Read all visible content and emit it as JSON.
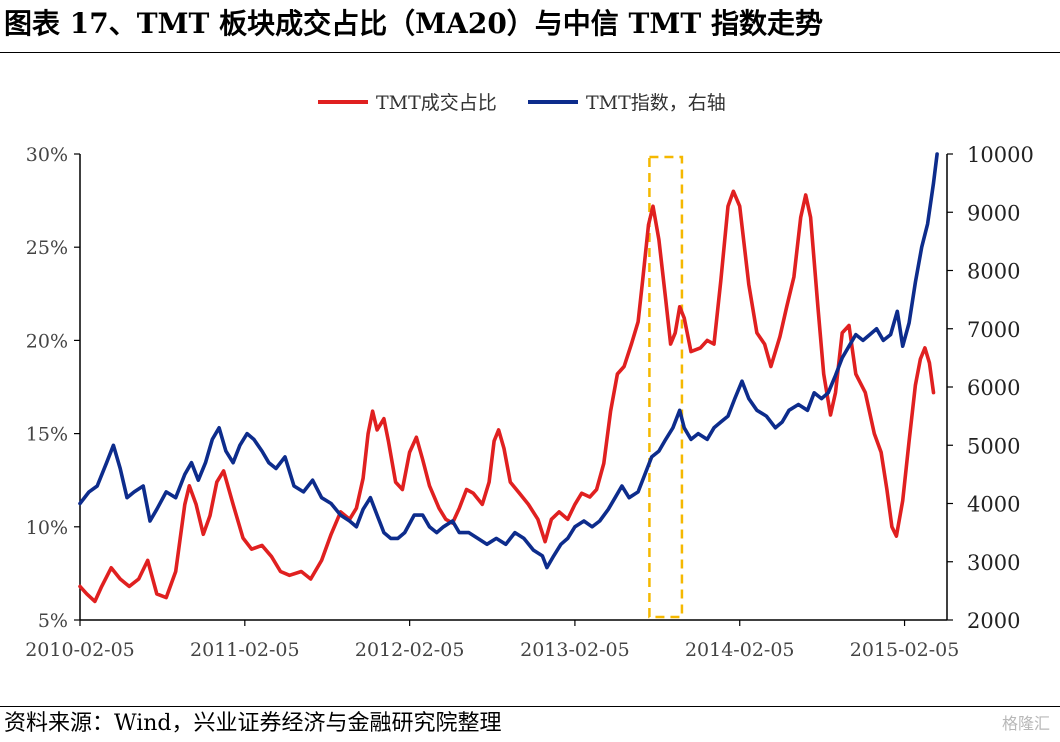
{
  "title": "图表 17、TMT 板块成交占比（MA20）与中信 TMT 指数走势",
  "source": "资料来源：Wind，兴业证券经济与金融研究院整理",
  "watermark": "格隆汇",
  "chart_data": {
    "type": "line",
    "legend_position": "top-center",
    "grid": false,
    "x_tick_labels": [
      "2010-02-05",
      "2011-02-05",
      "2012-02-05",
      "2013-02-05",
      "2014-02-05",
      "2015-02-05"
    ],
    "x_ticks": [
      "2010-02-05",
      "2011-02-05",
      "2012-02-05",
      "2013-02-05",
      "2014-02-05",
      "2015-02-05"
    ],
    "xlim": [
      "2010-02-05",
      "2015-05-10"
    ],
    "ylim_left": [
      5,
      30
    ],
    "left_tick_labels": [
      "5%",
      "10%",
      "15%",
      "20%",
      "25%",
      "30%"
    ],
    "left_ticks": [
      5,
      10,
      15,
      20,
      25,
      30
    ],
    "ylim_right": [
      2000,
      10000
    ],
    "right_tick_labels": [
      "2000",
      "3000",
      "4000",
      "5000",
      "6000",
      "7000",
      "8000",
      "9000",
      "10000"
    ],
    "right_ticks": [
      2000,
      3000,
      4000,
      5000,
      6000,
      7000,
      8000,
      9000,
      10000
    ],
    "highlight": {
      "x_start": "2013-07-20",
      "x_end": "2013-09-30",
      "color": "#F5B800"
    },
    "series": [
      {
        "name": "TMT成交占比",
        "axis": "left",
        "color": "#E02020",
        "points": [
          [
            "2010-02-05",
            6.8
          ],
          [
            "2010-02-20",
            6.4
          ],
          [
            "2010-03-10",
            6.0
          ],
          [
            "2010-03-25",
            6.8
          ],
          [
            "2010-04-15",
            7.8
          ],
          [
            "2010-05-05",
            7.2
          ],
          [
            "2010-05-25",
            6.8
          ],
          [
            "2010-06-15",
            7.2
          ],
          [
            "2010-07-05",
            8.2
          ],
          [
            "2010-07-25",
            6.4
          ],
          [
            "2010-08-15",
            6.2
          ],
          [
            "2010-09-05",
            7.6
          ],
          [
            "2010-09-25",
            11.2
          ],
          [
            "2010-10-05",
            12.2
          ],
          [
            "2010-10-20",
            11.2
          ],
          [
            "2010-11-05",
            9.6
          ],
          [
            "2010-11-20",
            10.6
          ],
          [
            "2010-12-05",
            12.4
          ],
          [
            "2010-12-20",
            13.0
          ],
          [
            "2011-01-10",
            11.2
          ],
          [
            "2011-02-01",
            9.4
          ],
          [
            "2011-02-20",
            8.8
          ],
          [
            "2011-03-15",
            9.0
          ],
          [
            "2011-04-05",
            8.4
          ],
          [
            "2011-04-25",
            7.6
          ],
          [
            "2011-05-15",
            7.4
          ],
          [
            "2011-06-10",
            7.6
          ],
          [
            "2011-07-01",
            7.2
          ],
          [
            "2011-07-25",
            8.2
          ],
          [
            "2011-08-15",
            9.6
          ],
          [
            "2011-09-05",
            10.8
          ],
          [
            "2011-09-25",
            10.4
          ],
          [
            "2011-10-10",
            11.0
          ],
          [
            "2011-10-25",
            12.6
          ],
          [
            "2011-11-05",
            15.0
          ],
          [
            "2011-11-15",
            16.2
          ],
          [
            "2011-11-25",
            15.2
          ],
          [
            "2011-12-10",
            15.8
          ],
          [
            "2011-12-20",
            14.6
          ],
          [
            "2012-01-05",
            12.4
          ],
          [
            "2012-01-20",
            12.0
          ],
          [
            "2012-02-05",
            14.0
          ],
          [
            "2012-02-20",
            14.8
          ],
          [
            "2012-03-05",
            13.6
          ],
          [
            "2012-03-20",
            12.2
          ],
          [
            "2012-04-10",
            11.0
          ],
          [
            "2012-04-25",
            10.4
          ],
          [
            "2012-05-10",
            10.2
          ],
          [
            "2012-05-25",
            11.0
          ],
          [
            "2012-06-10",
            12.0
          ],
          [
            "2012-06-25",
            11.8
          ],
          [
            "2012-07-15",
            11.2
          ],
          [
            "2012-07-30",
            12.4
          ],
          [
            "2012-08-10",
            14.6
          ],
          [
            "2012-08-20",
            15.2
          ],
          [
            "2012-09-01",
            14.2
          ],
          [
            "2012-09-15",
            12.4
          ],
          [
            "2012-10-05",
            11.8
          ],
          [
            "2012-10-25",
            11.2
          ],
          [
            "2012-11-15",
            10.4
          ],
          [
            "2012-12-01",
            9.2
          ],
          [
            "2012-12-15",
            10.4
          ],
          [
            "2013-01-01",
            10.8
          ],
          [
            "2013-01-20",
            10.4
          ],
          [
            "2013-02-05",
            11.2
          ],
          [
            "2013-02-20",
            11.8
          ],
          [
            "2013-03-10",
            11.6
          ],
          [
            "2013-03-25",
            12.0
          ],
          [
            "2013-04-10",
            13.4
          ],
          [
            "2013-04-25",
            16.2
          ],
          [
            "2013-05-10",
            18.2
          ],
          [
            "2013-05-25",
            18.6
          ],
          [
            "2013-06-10",
            19.8
          ],
          [
            "2013-06-25",
            21.0
          ],
          [
            "2013-07-05",
            23.2
          ],
          [
            "2013-07-18",
            26.2
          ],
          [
            "2013-07-28",
            27.2
          ],
          [
            "2013-08-10",
            25.4
          ],
          [
            "2013-08-25",
            22.2
          ],
          [
            "2013-09-05",
            19.8
          ],
          [
            "2013-09-15",
            20.4
          ],
          [
            "2013-09-25",
            21.8
          ],
          [
            "2013-10-05",
            21.2
          ],
          [
            "2013-10-20",
            19.4
          ],
          [
            "2013-11-10",
            19.6
          ],
          [
            "2013-11-25",
            20.0
          ],
          [
            "2013-12-10",
            19.8
          ],
          [
            "2013-12-25",
            23.2
          ],
          [
            "2014-01-10",
            27.2
          ],
          [
            "2014-01-22",
            28.0
          ],
          [
            "2014-02-05",
            27.2
          ],
          [
            "2014-02-25",
            23.0
          ],
          [
            "2014-03-15",
            20.4
          ],
          [
            "2014-04-01",
            19.8
          ],
          [
            "2014-04-15",
            18.6
          ],
          [
            "2014-05-05",
            20.2
          ],
          [
            "2014-05-20",
            21.8
          ],
          [
            "2014-06-05",
            23.4
          ],
          [
            "2014-06-20",
            26.6
          ],
          [
            "2014-07-01",
            27.8
          ],
          [
            "2014-07-12",
            26.6
          ],
          [
            "2014-07-28",
            21.8
          ],
          [
            "2014-08-10",
            18.2
          ],
          [
            "2014-08-25",
            16.0
          ],
          [
            "2014-09-05",
            17.2
          ],
          [
            "2014-09-20",
            20.4
          ],
          [
            "2014-10-05",
            20.8
          ],
          [
            "2014-10-20",
            18.2
          ],
          [
            "2014-11-10",
            17.2
          ],
          [
            "2014-11-30",
            15.0
          ],
          [
            "2014-12-15",
            14.0
          ],
          [
            "2014-12-28",
            12.0
          ],
          [
            "2015-01-08",
            10.0
          ],
          [
            "2015-01-18",
            9.5
          ],
          [
            "2015-02-01",
            11.4
          ],
          [
            "2015-02-15",
            14.6
          ],
          [
            "2015-03-01",
            17.6
          ],
          [
            "2015-03-12",
            19.0
          ],
          [
            "2015-03-22",
            19.6
          ],
          [
            "2015-04-01",
            18.8
          ],
          [
            "2015-04-10",
            17.2
          ]
        ]
      },
      {
        "name": "TMT指数，右轴",
        "axis": "right",
        "color": "#0D2C8C",
        "points": [
          [
            "2010-02-05",
            4000
          ],
          [
            "2010-02-25",
            4200
          ],
          [
            "2010-03-15",
            4300
          ],
          [
            "2010-04-05",
            4700
          ],
          [
            "2010-04-20",
            5000
          ],
          [
            "2010-05-05",
            4600
          ],
          [
            "2010-05-20",
            4100
          ],
          [
            "2010-06-05",
            4200
          ],
          [
            "2010-06-25",
            4300
          ],
          [
            "2010-07-10",
            3700
          ],
          [
            "2010-07-25",
            3900
          ],
          [
            "2010-08-15",
            4200
          ],
          [
            "2010-09-05",
            4100
          ],
          [
            "2010-09-25",
            4500
          ],
          [
            "2010-10-10",
            4700
          ],
          [
            "2010-10-25",
            4400
          ],
          [
            "2010-11-10",
            4700
          ],
          [
            "2010-11-25",
            5100
          ],
          [
            "2010-12-10",
            5300
          ],
          [
            "2010-12-25",
            4900
          ],
          [
            "2011-01-10",
            4700
          ],
          [
            "2011-01-25",
            5000
          ],
          [
            "2011-02-10",
            5200
          ],
          [
            "2011-02-25",
            5100
          ],
          [
            "2011-03-15",
            4900
          ],
          [
            "2011-03-30",
            4700
          ],
          [
            "2011-04-15",
            4600
          ],
          [
            "2011-05-05",
            4800
          ],
          [
            "2011-05-25",
            4300
          ],
          [
            "2011-06-15",
            4200
          ],
          [
            "2011-07-05",
            4400
          ],
          [
            "2011-07-25",
            4100
          ],
          [
            "2011-08-15",
            4000
          ],
          [
            "2011-09-05",
            3800
          ],
          [
            "2011-09-25",
            3700
          ],
          [
            "2011-10-10",
            3600
          ],
          [
            "2011-10-25",
            3900
          ],
          [
            "2011-11-10",
            4100
          ],
          [
            "2011-11-25",
            3800
          ],
          [
            "2011-12-10",
            3500
          ],
          [
            "2011-12-25",
            3400
          ],
          [
            "2012-01-10",
            3400
          ],
          [
            "2012-01-25",
            3500
          ],
          [
            "2012-02-15",
            3800
          ],
          [
            "2012-03-05",
            3800
          ],
          [
            "2012-03-20",
            3600
          ],
          [
            "2012-04-05",
            3500
          ],
          [
            "2012-04-20",
            3600
          ],
          [
            "2012-05-10",
            3700
          ],
          [
            "2012-05-25",
            3500
          ],
          [
            "2012-06-15",
            3500
          ],
          [
            "2012-07-05",
            3400
          ],
          [
            "2012-07-25",
            3300
          ],
          [
            "2012-08-15",
            3400
          ],
          [
            "2012-09-05",
            3300
          ],
          [
            "2012-09-25",
            3500
          ],
          [
            "2012-10-15",
            3400
          ],
          [
            "2012-11-05",
            3200
          ],
          [
            "2012-11-25",
            3100
          ],
          [
            "2012-12-05",
            2900
          ],
          [
            "2012-12-20",
            3100
          ],
          [
            "2013-01-05",
            3300
          ],
          [
            "2013-01-20",
            3400
          ],
          [
            "2013-02-05",
            3600
          ],
          [
            "2013-02-25",
            3700
          ],
          [
            "2013-03-15",
            3600
          ],
          [
            "2013-04-01",
            3700
          ],
          [
            "2013-04-20",
            3900
          ],
          [
            "2013-05-05",
            4100
          ],
          [
            "2013-05-20",
            4300
          ],
          [
            "2013-06-05",
            4100
          ],
          [
            "2013-06-25",
            4200
          ],
          [
            "2013-07-10",
            4500
          ],
          [
            "2013-07-25",
            4800
          ],
          [
            "2013-08-10",
            4900
          ],
          [
            "2013-08-25",
            5100
          ],
          [
            "2013-09-10",
            5300
          ],
          [
            "2013-09-25",
            5600
          ],
          [
            "2013-10-05",
            5300
          ],
          [
            "2013-10-20",
            5100
          ],
          [
            "2013-11-05",
            5200
          ],
          [
            "2013-11-25",
            5100
          ],
          [
            "2013-12-10",
            5300
          ],
          [
            "2013-12-25",
            5400
          ],
          [
            "2014-01-10",
            5500
          ],
          [
            "2014-01-25",
            5800
          ],
          [
            "2014-02-10",
            6100
          ],
          [
            "2014-02-25",
            5800
          ],
          [
            "2014-03-15",
            5600
          ],
          [
            "2014-04-05",
            5500
          ],
          [
            "2014-04-25",
            5300
          ],
          [
            "2014-05-10",
            5400
          ],
          [
            "2014-05-25",
            5600
          ],
          [
            "2014-06-15",
            5700
          ],
          [
            "2014-07-05",
            5600
          ],
          [
            "2014-07-20",
            5900
          ],
          [
            "2014-08-05",
            5800
          ],
          [
            "2014-08-20",
            5900
          ],
          [
            "2014-09-05",
            6200
          ],
          [
            "2014-09-20",
            6500
          ],
          [
            "2014-10-05",
            6700
          ],
          [
            "2014-10-20",
            6900
          ],
          [
            "2014-11-05",
            6800
          ],
          [
            "2014-11-20",
            6900
          ],
          [
            "2014-12-05",
            7000
          ],
          [
            "2014-12-20",
            6800
          ],
          [
            "2015-01-05",
            6900
          ],
          [
            "2015-01-20",
            7300
          ],
          [
            "2015-02-01",
            6700
          ],
          [
            "2015-02-15",
            7100
          ],
          [
            "2015-03-01",
            7800
          ],
          [
            "2015-03-15",
            8400
          ],
          [
            "2015-03-28",
            8800
          ],
          [
            "2015-04-10",
            9500
          ],
          [
            "2015-04-18",
            10000
          ]
        ]
      }
    ]
  }
}
